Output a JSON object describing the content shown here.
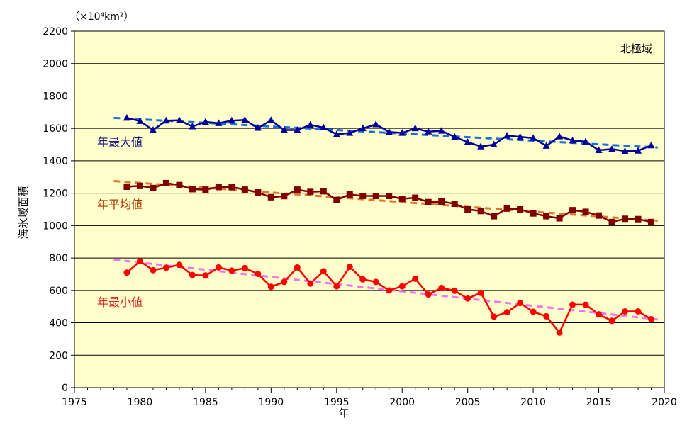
{
  "chart_data": {
    "type": "line",
    "region_label": "北極域",
    "unit_label": "（×10⁴km²）",
    "xlabel": "年",
    "ylabel": "海氷域面積",
    "xlim": [
      1975,
      2020
    ],
    "ylim": [
      0,
      2200
    ],
    "x_ticks": [
      1975,
      1980,
      1985,
      1990,
      1995,
      2000,
      2005,
      2010,
      2015,
      2020
    ],
    "y_ticks": [
      0,
      200,
      400,
      600,
      800,
      1000,
      1200,
      1400,
      1600,
      1800,
      2000,
      2200
    ],
    "grid": "horizontal",
    "x": [
      1979,
      1980,
      1981,
      1982,
      1983,
      1984,
      1985,
      1986,
      1987,
      1988,
      1989,
      1990,
      1991,
      1992,
      1993,
      1994,
      1995,
      1996,
      1997,
      1998,
      1999,
      2000,
      2001,
      2002,
      2003,
      2004,
      2005,
      2006,
      2007,
      2008,
      2009,
      2010,
      2011,
      2012,
      2013,
      2014,
      2015,
      2016,
      2017,
      2018,
      2019
    ],
    "series": [
      {
        "name": "年最大値",
        "color": "#000099",
        "label_color": "#1a1a80",
        "marker": "triangle",
        "values": [
          1665,
          1645,
          1590,
          1648,
          1650,
          1612,
          1640,
          1632,
          1648,
          1652,
          1603,
          1650,
          1590,
          1590,
          1622,
          1605,
          1563,
          1572,
          1600,
          1625,
          1578,
          1572,
          1600,
          1580,
          1585,
          1548,
          1515,
          1488,
          1500,
          1555,
          1548,
          1540,
          1492,
          1550,
          1525,
          1518,
          1465,
          1472,
          1460,
          1462,
          1495
        ],
        "trend": {
          "color": "#1a6fdc",
          "start": [
            1978,
            1665
          ],
          "end": [
            2019.5,
            1482
          ]
        }
      },
      {
        "name": "年平均値",
        "color": "#800000",
        "label_color": "#b03a00",
        "marker": "square",
        "values": [
          1240,
          1245,
          1232,
          1262,
          1250,
          1225,
          1222,
          1238,
          1238,
          1222,
          1205,
          1175,
          1182,
          1222,
          1208,
          1212,
          1158,
          1192,
          1183,
          1183,
          1183,
          1165,
          1172,
          1145,
          1148,
          1135,
          1100,
          1090,
          1058,
          1105,
          1100,
          1075,
          1058,
          1045,
          1095,
          1085,
          1062,
          1022,
          1042,
          1040,
          1022
        ],
        "trend": {
          "color": "#e0782a",
          "start": [
            1978,
            1275
          ],
          "end": [
            2019.5,
            1030
          ]
        }
      },
      {
        "name": "年最小値",
        "color": "#ff0000",
        "label_color": "#e02020",
        "marker": "circle",
        "values": [
          710,
          780,
          725,
          740,
          758,
          695,
          692,
          742,
          722,
          738,
          702,
          622,
          652,
          742,
          642,
          718,
          625,
          745,
          668,
          652,
          600,
          625,
          672,
          575,
          615,
          598,
          550,
          585,
          438,
          465,
          522,
          468,
          440,
          340,
          512,
          512,
          452,
          412,
          470,
          470,
          422
        ],
        "trend": {
          "color": "#ee77ee",
          "start": [
            1978,
            790
          ],
          "end": [
            2019.5,
            420
          ]
        }
      }
    ]
  }
}
